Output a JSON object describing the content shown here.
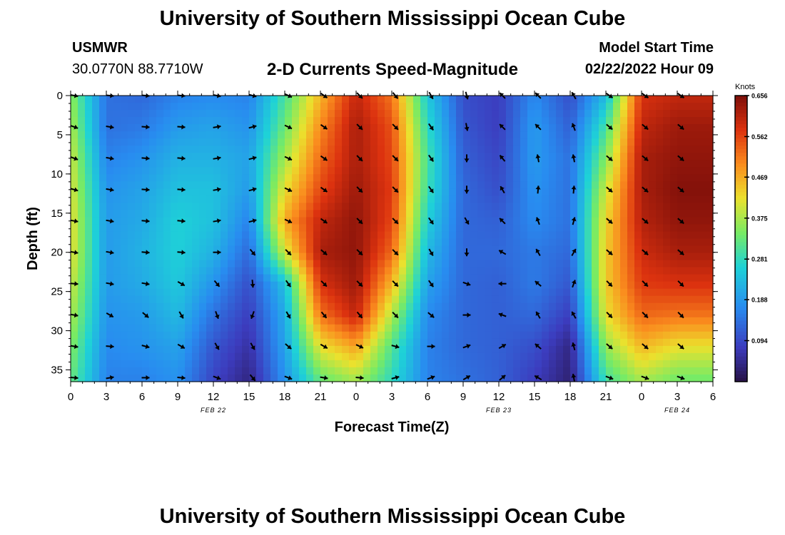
{
  "page": {
    "title": "University of Southern Mississippi Ocean Cube",
    "footer_title": "University of Southern Mississippi Ocean Cube",
    "station": "USMWR",
    "coordinates": "30.0770N  88.7710W",
    "model_start_label": "Model Start Time",
    "model_start_value": "02/22/2022 Hour 09"
  },
  "chart_data": {
    "type": "heatmap",
    "title": "2-D Currents Speed-Magnitude",
    "xlabel": "Forecast Time(Z)",
    "ylabel": "Depth (ft)",
    "x_ticks": [
      "0",
      "3",
      "6",
      "9",
      "12",
      "15",
      "18",
      "21",
      "0",
      "3",
      "6",
      "9",
      "12",
      "15",
      "18",
      "21",
      "0",
      "3",
      "6"
    ],
    "x_tick_hours": [
      0,
      3,
      6,
      9,
      12,
      15,
      18,
      21,
      24,
      27,
      30,
      33,
      36,
      39,
      42,
      45,
      48,
      51,
      54
    ],
    "x_range_hours": [
      0,
      54
    ],
    "date_labels": [
      {
        "text": "FEB 22",
        "hour": 12
      },
      {
        "text": "FEB 23",
        "hour": 36
      },
      {
        "text": "FEB 24",
        "hour": 51
      }
    ],
    "y_ticks": [
      0,
      5,
      10,
      15,
      20,
      25,
      30,
      35
    ],
    "y_range_ft": [
      0,
      36.5
    ],
    "colorbar": {
      "units": "Knots",
      "min": 0.0,
      "max": 0.656,
      "tick_labels": [
        "0.656",
        "0.562",
        "0.469",
        "0.375",
        "0.281",
        "0.188",
        "0.094"
      ],
      "tick_values": [
        0.656,
        0.562,
        0.469,
        0.375,
        0.281,
        0.188,
        0.094
      ]
    },
    "arrow_hours": [
      0,
      3,
      6,
      9,
      12,
      15,
      18,
      21,
      24,
      27,
      30,
      33,
      36,
      39,
      42,
      45,
      48,
      51
    ],
    "arrow_depths_ft": [
      0,
      4,
      8,
      12,
      16,
      20,
      24,
      28,
      32,
      36
    ],
    "speed_knots": [
      [
        0.36,
        0.14,
        0.13,
        0.16,
        0.17,
        0.16,
        0.3,
        0.46,
        0.6,
        0.52,
        0.25,
        0.1,
        0.08,
        0.17,
        0.1,
        0.23,
        0.58,
        0.6
      ],
      [
        0.38,
        0.14,
        0.15,
        0.19,
        0.2,
        0.18,
        0.33,
        0.5,
        0.62,
        0.55,
        0.28,
        0.11,
        0.08,
        0.19,
        0.12,
        0.3,
        0.6,
        0.63
      ],
      [
        0.4,
        0.16,
        0.18,
        0.22,
        0.22,
        0.2,
        0.37,
        0.53,
        0.62,
        0.56,
        0.3,
        0.12,
        0.09,
        0.19,
        0.14,
        0.35,
        0.62,
        0.64
      ],
      [
        0.41,
        0.18,
        0.2,
        0.24,
        0.24,
        0.19,
        0.42,
        0.56,
        0.63,
        0.57,
        0.29,
        0.13,
        0.1,
        0.18,
        0.14,
        0.4,
        0.62,
        0.65
      ],
      [
        0.42,
        0.19,
        0.21,
        0.26,
        0.24,
        0.16,
        0.47,
        0.6,
        0.64,
        0.56,
        0.26,
        0.13,
        0.12,
        0.17,
        0.14,
        0.43,
        0.61,
        0.64
      ],
      [
        0.42,
        0.19,
        0.22,
        0.26,
        0.22,
        0.13,
        0.4,
        0.62,
        0.64,
        0.53,
        0.23,
        0.13,
        0.13,
        0.15,
        0.13,
        0.44,
        0.59,
        0.62
      ],
      [
        0.4,
        0.19,
        0.21,
        0.25,
        0.18,
        0.1,
        0.24,
        0.58,
        0.63,
        0.46,
        0.2,
        0.13,
        0.12,
        0.15,
        0.11,
        0.44,
        0.57,
        0.58
      ],
      [
        0.38,
        0.18,
        0.19,
        0.23,
        0.14,
        0.08,
        0.21,
        0.52,
        0.6,
        0.38,
        0.17,
        0.13,
        0.12,
        0.13,
        0.08,
        0.42,
        0.53,
        0.52
      ],
      [
        0.35,
        0.17,
        0.18,
        0.2,
        0.11,
        0.06,
        0.2,
        0.42,
        0.48,
        0.31,
        0.16,
        0.13,
        0.12,
        0.1,
        0.04,
        0.36,
        0.46,
        0.42
      ],
      [
        0.33,
        0.16,
        0.16,
        0.18,
        0.09,
        0.04,
        0.18,
        0.33,
        0.38,
        0.28,
        0.16,
        0.14,
        0.12,
        0.08,
        0.03,
        0.3,
        0.38,
        0.34
      ]
    ],
    "direction_deg": [
      [
        100,
        95,
        95,
        95,
        100,
        105,
        115,
        125,
        135,
        140,
        150,
        165,
        315,
        315,
        330,
        125,
        125,
        125
      ],
      [
        110,
        100,
        95,
        95,
        80,
        75,
        115,
        125,
        135,
        135,
        145,
        170,
        315,
        315,
        340,
        130,
        130,
        130
      ],
      [
        110,
        100,
        95,
        95,
        80,
        75,
        115,
        125,
        135,
        135,
        145,
        180,
        320,
        350,
        350,
        130,
        130,
        130
      ],
      [
        105,
        100,
        95,
        95,
        80,
        75,
        115,
        125,
        135,
        135,
        145,
        180,
        330,
        5,
        5,
        130,
        130,
        130
      ],
      [
        100,
        100,
        95,
        95,
        80,
        75,
        115,
        125,
        135,
        135,
        145,
        150,
        315,
        340,
        15,
        130,
        130,
        130
      ],
      [
        100,
        100,
        95,
        95,
        90,
        140,
        135,
        130,
        135,
        135,
        150,
        180,
        300,
        330,
        30,
        130,
        130,
        130
      ],
      [
        95,
        100,
        100,
        120,
        140,
        175,
        145,
        135,
        135,
        135,
        145,
        110,
        270,
        310,
        20,
        135,
        135,
        135
      ],
      [
        100,
        120,
        130,
        150,
        160,
        200,
        150,
        140,
        140,
        135,
        130,
        90,
        290,
        330,
        330,
        135,
        135,
        135
      ],
      [
        100,
        95,
        105,
        120,
        150,
        150,
        130,
        120,
        115,
        105,
        90,
        70,
        60,
        310,
        345,
        130,
        130,
        130
      ],
      [
        95,
        80,
        90,
        95,
        110,
        140,
        110,
        100,
        95,
        75,
        70,
        60,
        50,
        300,
        350,
        110,
        110,
        110
      ]
    ]
  }
}
